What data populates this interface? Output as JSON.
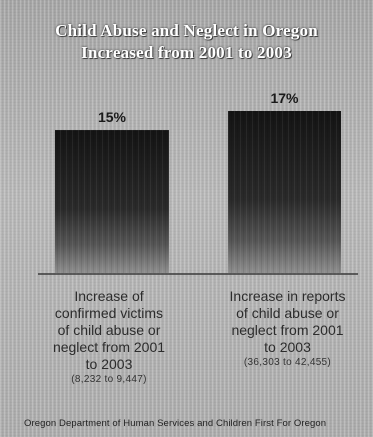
{
  "chart_data": {
    "type": "bar",
    "title": "Child Abuse and Neglect in Oregon Increased from 2001 to 2003",
    "title_lines": [
      "Child Abuse and Neglect in Oregon",
      "Increased from 2001 to 2003"
    ],
    "categories": [
      "Increase of confirmed victims of child abuse or neglect from 2001 to 2003",
      "Increase in reports of child abuse or neglect from 2001 to 2003"
    ],
    "values": [
      15,
      17
    ],
    "value_labels": [
      "15%",
      "17%"
    ],
    "category_details": [
      "(8,232 to 9,447)",
      "(36,303 to 42,455)"
    ],
    "ylabel": "",
    "xlabel": "",
    "ylim": [
      0,
      17
    ],
    "grid": false,
    "legend": "none",
    "colors": {
      "bar_top": "#141414",
      "bar_bottom": "#8a8a8a",
      "baseline": "#3a3a3a",
      "background": "#b8b8b8",
      "title": "#ffffff"
    }
  },
  "labels": {
    "left_line1": "Increase of",
    "left_line2": "confirmed victims",
    "left_line3": "of child abuse or",
    "left_line4": "neglect from 2001",
    "left_line5": "to 2003",
    "left_detail": "(8,232 to 9,447)",
    "right_line1": "Increase in reports",
    "right_line2": "of child abuse or",
    "right_line3": "neglect from 2001",
    "right_line4": "to 2003",
    "right_detail": "(36,303 to 42,455)"
  },
  "source": "Oregon Department of Human Services and Children First For Oregon"
}
